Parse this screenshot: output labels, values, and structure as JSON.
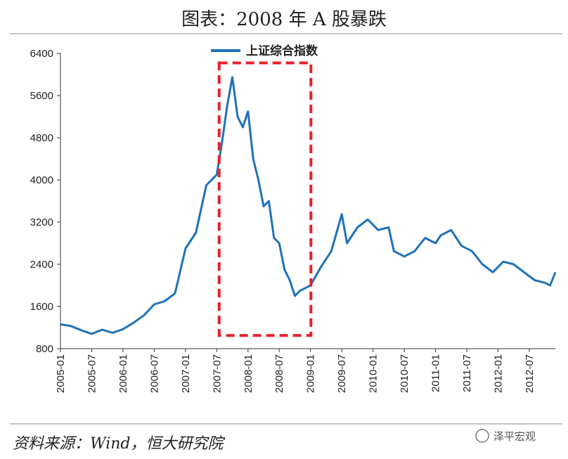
{
  "chart_data": {
    "type": "line",
    "title": "图表：2008 年 A 股暴跌",
    "ylim": [
      800,
      6400
    ],
    "yticks": [
      "6400",
      "5600",
      "4800",
      "4000",
      "3200",
      "2400",
      "1600",
      "800"
    ],
    "xticks": [
      "2005-01",
      "2005-07",
      "2006-01",
      "2006-07",
      "2007-01",
      "2007-07",
      "2008-01",
      "2008-07",
      "2009-01",
      "2009-07",
      "2010-01",
      "2010-07",
      "2011-01",
      "2011-07",
      "2012-01",
      "2012-07"
    ],
    "series": [
      {
        "name": "上证综合指数",
        "color": "#1f72b8",
        "points": [
          [
            "2005-01",
            1260
          ],
          [
            "2005-03",
            1230
          ],
          [
            "2005-05",
            1150
          ],
          [
            "2005-07",
            1080
          ],
          [
            "2005-09",
            1160
          ],
          [
            "2005-11",
            1100
          ],
          [
            "2006-01",
            1170
          ],
          [
            "2006-03",
            1290
          ],
          [
            "2006-05",
            1430
          ],
          [
            "2006-07",
            1640
          ],
          [
            "2006-09",
            1700
          ],
          [
            "2006-11",
            1850
          ],
          [
            "2007-01",
            2700
          ],
          [
            "2007-03",
            3000
          ],
          [
            "2007-05",
            3900
          ],
          [
            "2007-07",
            4100
          ],
          [
            "2007-08",
            4700
          ],
          [
            "2007-09",
            5400
          ],
          [
            "2007-10",
            5950
          ],
          [
            "2007-11",
            5200
          ],
          [
            "2007-12",
            5000
          ],
          [
            "2008-01",
            5300
          ],
          [
            "2008-02",
            4400
          ],
          [
            "2008-03",
            4000
          ],
          [
            "2008-04",
            3500
          ],
          [
            "2008-05",
            3600
          ],
          [
            "2008-06",
            2900
          ],
          [
            "2008-07",
            2800
          ],
          [
            "2008-08",
            2300
          ],
          [
            "2008-09",
            2100
          ],
          [
            "2008-10",
            1800
          ],
          [
            "2008-11",
            1900
          ],
          [
            "2008-12",
            1950
          ],
          [
            "2009-01",
            2000
          ],
          [
            "2009-03",
            2350
          ],
          [
            "2009-05",
            2650
          ],
          [
            "2009-07",
            3350
          ],
          [
            "2009-08",
            2800
          ],
          [
            "2009-10",
            3100
          ],
          [
            "2009-12",
            3250
          ],
          [
            "2010-02",
            3050
          ],
          [
            "2010-04",
            3100
          ],
          [
            "2010-05",
            2650
          ],
          [
            "2010-07",
            2550
          ],
          [
            "2010-09",
            2650
          ],
          [
            "2010-11",
            2900
          ],
          [
            "2011-01",
            2800
          ],
          [
            "2011-02",
            2950
          ],
          [
            "2011-04",
            3050
          ],
          [
            "2011-06",
            2750
          ],
          [
            "2011-08",
            2650
          ],
          [
            "2011-10",
            2400
          ],
          [
            "2011-12",
            2250
          ],
          [
            "2012-02",
            2450
          ],
          [
            "2012-04",
            2400
          ],
          [
            "2012-06",
            2250
          ],
          [
            "2012-08",
            2100
          ],
          [
            "2012-10",
            2050
          ],
          [
            "2012-11",
            2000
          ],
          [
            "2012-12",
            2250
          ]
        ]
      }
    ],
    "highlight": {
      "label": "",
      "x_start": "2007-08",
      "x_end": "2008-12",
      "style": "red dashed box"
    },
    "legend": "top-center",
    "grid": false
  },
  "source": "资料来源：Wind，恒大研究院",
  "watermark": "泽平宏观"
}
